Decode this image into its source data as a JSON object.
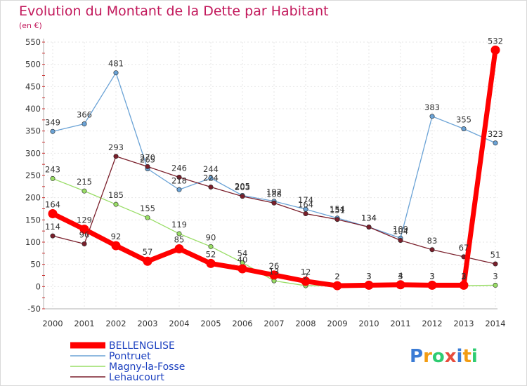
{
  "chart_data": {
    "type": "line",
    "title": "Evolution du Montant de la Dette par Habitant",
    "subtitle": "(en €)",
    "xlabel": "",
    "ylabel": "",
    "categories": [
      "2000",
      "2001",
      "2002",
      "2003",
      "2004",
      "2005",
      "2006",
      "2007",
      "2008",
      "2009",
      "2010",
      "2011",
      "2012",
      "2013",
      "2014"
    ],
    "ylim": [
      -50,
      550
    ],
    "yticks": [
      -50,
      0,
      50,
      100,
      150,
      200,
      250,
      300,
      350,
      400,
      450,
      500,
      550
    ],
    "grid": true,
    "legend_position": "bottom-left",
    "series": [
      {
        "name": "BELLENGLISE",
        "color": "#ff0000",
        "values": [
          164,
          129,
          92,
          57,
          85,
          52,
          40,
          26,
          12,
          2,
          3,
          4,
          3,
          3,
          532
        ]
      },
      {
        "name": "Pontruet",
        "color": "#6ba3d6",
        "values": [
          349,
          366,
          481,
          265,
          218,
          244,
          205,
          192,
          174,
          154,
          134,
          109,
          383,
          355,
          323
        ]
      },
      {
        "name": "Magny-la-Fosse",
        "color": "#99dd66",
        "values": [
          243,
          215,
          185,
          155,
          119,
          90,
          54,
          13,
          2,
          2,
          3,
          3,
          3,
          2,
          3
        ]
      },
      {
        "name": "Lehaucourt",
        "color": "#7a1f2b",
        "values": [
          114,
          96,
          293,
          270,
          246,
          224,
          203,
          188,
          164,
          151,
          134,
          104,
          83,
          67,
          51
        ]
      }
    ],
    "data_labels": [
      {
        "series": "BELLENGLISE",
        "labels": [
          "164",
          "129",
          "92",
          "57",
          "85",
          "52",
          "40",
          "26",
          "12",
          "2",
          "3",
          "4",
          "3",
          "3",
          "532"
        ]
      },
      {
        "series": "Pontruet",
        "labels": [
          "349",
          "366",
          "481",
          "265",
          "218",
          "244",
          "205",
          "192",
          "174",
          "154",
          "134",
          "109",
          "383",
          "355",
          "323"
        ]
      },
      {
        "series": "Magny-la-Fosse",
        "labels": [
          "243",
          "215",
          "185",
          "155",
          "119",
          "90",
          "54",
          "13",
          "2",
          "2",
          "3",
          "3",
          "3",
          "2",
          "3"
        ]
      },
      {
        "series": "Lehaucourt",
        "labels": [
          "114",
          "96",
          "293",
          "270",
          "246",
          "224",
          "203",
          "188",
          "164",
          "151",
          "134",
          "104",
          "83",
          "67",
          "51"
        ]
      }
    ]
  },
  "logo": {
    "text": "Proxiti",
    "letters": [
      "P",
      "r",
      "o",
      "x",
      "i",
      "t",
      "i"
    ],
    "colors": [
      "#3a7bd5",
      "#f39c12",
      "#2ecc71",
      "#e74c3c",
      "#3a7bd5",
      "#f39c12",
      "#2ecc71"
    ]
  }
}
